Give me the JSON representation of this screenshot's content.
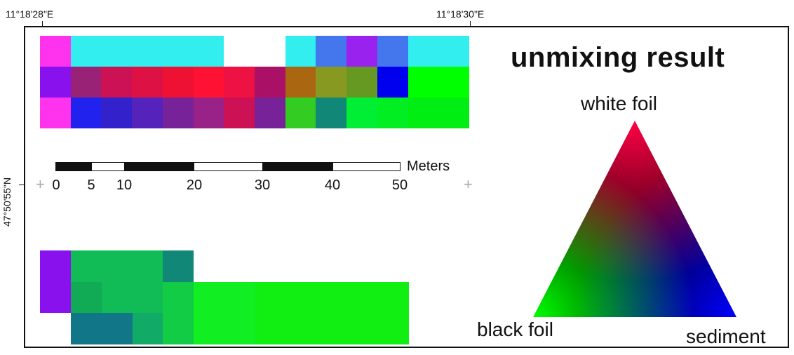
{
  "coordinates": {
    "lon_left": "11°18'28\"E",
    "lon_right": "11°18'30\"E",
    "lat": "47°50'55\"N"
  },
  "scale_bar": {
    "unit": "Meters",
    "ticks": [
      "0",
      "5",
      "10",
      "20",
      "30",
      "40",
      "50"
    ]
  },
  "legend": {
    "title": "unmixing result",
    "vertices": {
      "top": "white foil",
      "bottom_left": "black foil",
      "bottom_right": "sediment"
    },
    "colors": {
      "white_foil": "#ff0044",
      "black_foil": "#00ff00",
      "sediment": "#0000ff"
    }
  },
  "raster_top_rows": [
    [
      "#ff33ee",
      "#33eeee",
      "#33eeee",
      "#33eeee",
      "#33eeee",
      "#33eeee",
      "#ffffff",
      "#ffffff",
      "#33eeee",
      "#4477ee",
      "#9922ee",
      "#4477ee",
      "#33eeee",
      "#33eeee"
    ],
    [
      "#8811ee",
      "#992277",
      "#cc1155",
      "#dd1144",
      "#ee1133",
      "#ff1133",
      "#ee1144",
      "#aa1166",
      "#aa6611",
      "#889922",
      "#669922",
      "#0000ee",
      "#00ff00",
      "#00ff00"
    ],
    [
      "#ff33ee",
      "#2222ee",
      "#3322cc",
      "#5522bb",
      "#772299",
      "#992288",
      "#cc1155",
      "#772299",
      "#33cc22",
      "#118877",
      "#00ee33",
      "#00ee22",
      "#00ee11",
      "#00ee11"
    ]
  ],
  "raster_bottom_rows": [
    [
      "#8811ee",
      "#11bb55",
      "#11bb55",
      "#11bb55",
      "#118877",
      "#ffffff",
      "#ffffff",
      "#ffffff",
      "#ffffff",
      "#ffffff",
      "#ffffff",
      "#ffffff"
    ],
    [
      "#8811ee",
      "#11aa55",
      "#11bb55",
      "#11bb55",
      "#11cc44",
      "#11ee22",
      "#11ee22",
      "#11ee11",
      "#11ee11",
      "#11ee11",
      "#11ee11",
      "#11ee11"
    ],
    [
      "#ffffff",
      "#117788",
      "#117788",
      "#11aa66",
      "#11cc44",
      "#11ee22",
      "#11ee22",
      "#11ee11",
      "#11ee11",
      "#11ee11",
      "#11ee11",
      "#11ee11"
    ]
  ]
}
